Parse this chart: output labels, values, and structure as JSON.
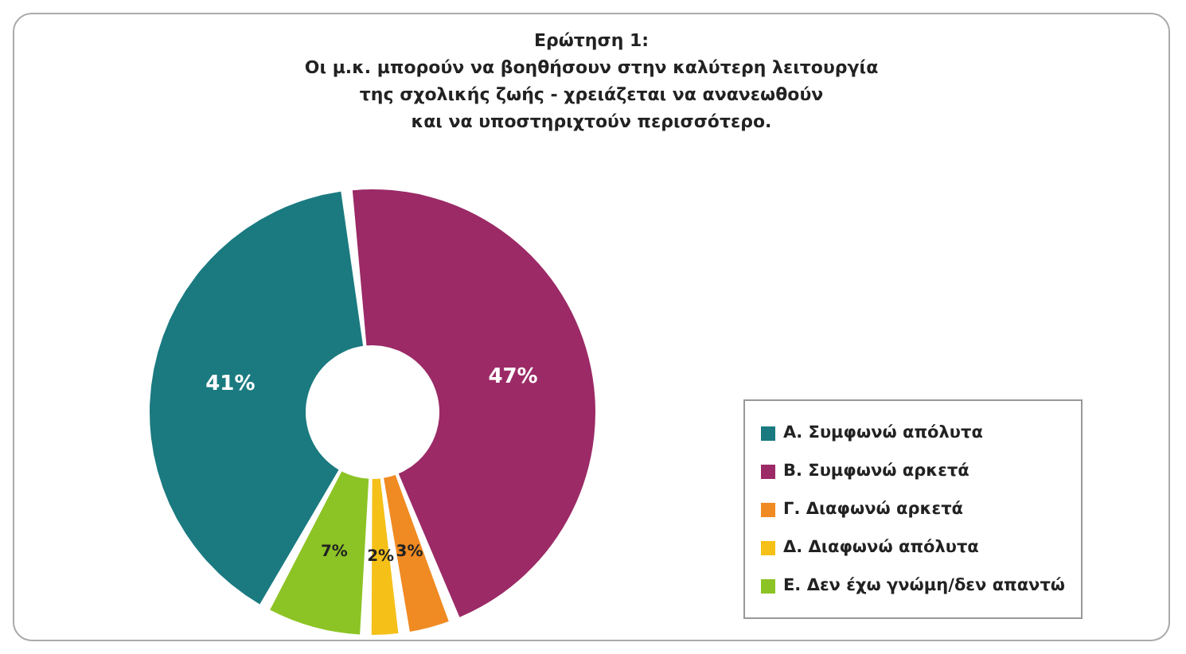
{
  "chart_data": {
    "type": "donut",
    "title": "Ερώτηση 1:\nΟι μ.κ. μπορούν να βοηθήσουν στην καλύτερη λειτουργία\nτης σχολικής ζωής - χρειάζεται να ανανεωθούν\nκαι να υποστηριχτούν περισσότερο.",
    "categories": [
      "Α. Συμφωνώ απόλυτα",
      "Β. Συμφωνώ αρκετά",
      "Γ. Διαφωνώ αρκετά",
      "Δ. Διαφωνώ απόλυτα",
      "Ε. Δεν έχω γνώμη/δεν απαντώ"
    ],
    "values": [
      41,
      47,
      3,
      2,
      7
    ],
    "value_labels": [
      "41%",
      "47%",
      "3%",
      "2%",
      "7%"
    ],
    "colors": [
      "#1a7a80",
      "#9b2a66",
      "#f08a22",
      "#f5c018",
      "#8cc425"
    ],
    "legend": "right"
  }
}
